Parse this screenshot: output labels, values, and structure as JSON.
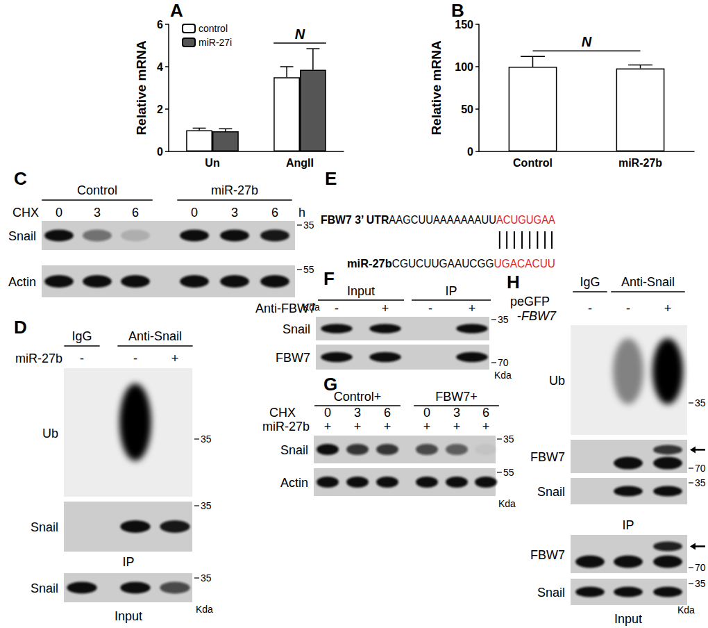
{
  "chart_data": [
    {
      "label": "A",
      "type": "bar",
      "y_label": "Relative mRNA",
      "categories": [
        "Un",
        "AngII"
      ],
      "series": [
        {
          "name": "control",
          "color": "#ffffff",
          "values": [
            1.0,
            3.5
          ],
          "errors": [
            0.1,
            0.5
          ]
        },
        {
          "name": "miR-27i",
          "color": "#555555",
          "values": [
            0.95,
            3.85
          ],
          "errors": [
            0.12,
            1.0
          ]
        }
      ],
      "ylim": [
        0,
        6
      ],
      "yticks": [
        0,
        2,
        4,
        6
      ],
      "grid": false,
      "legend": "upper left",
      "annotations": [
        {
          "text": "N",
          "categories": [
            "AngII"
          ]
        }
      ]
    },
    {
      "label": "B",
      "type": "bar",
      "y_label": "Relative mRNA",
      "categories": [
        "Control",
        "miR-27b"
      ],
      "values": [
        100,
        98
      ],
      "errors": [
        12,
        4
      ],
      "color": "#ffffff",
      "ylim": [
        0,
        150
      ],
      "yticks": [
        0,
        50,
        100,
        150
      ],
      "grid": false,
      "annotations": [
        {
          "text": "N",
          "categories": [
            "Control",
            "miR-27b"
          ]
        }
      ]
    }
  ],
  "panels": {
    "C": {
      "label": "C",
      "groups": [
        "Control",
        "miR-27b"
      ],
      "conditions": [
        {
          "name": "CHX",
          "values": [
            0,
            3,
            6,
            0,
            3,
            6
          ],
          "unit": "h"
        }
      ],
      "rows": [
        {
          "name": "Snail",
          "bands": [
            1,
            0.5,
            0.15,
            1,
            1,
            0.95
          ],
          "marker": 35
        },
        {
          "name": "Actin",
          "bands": [
            1,
            1,
            1,
            1,
            1,
            1
          ],
          "marker": 55
        }
      ],
      "unit": "Kda"
    },
    "D": {
      "label": "D",
      "groups": [
        "IgG",
        "Anti-Snail"
      ],
      "conditions": [
        {
          "name": "miR-27b",
          "values": [
            "-",
            "-",
            "+"
          ]
        }
      ],
      "sections": [
        {
          "caption": "IP",
          "rows": [
            {
              "name": "Ub",
              "smear": [
                0,
                1,
                0
              ],
              "marker": 35
            },
            {
              "name": "Snail",
              "bands": [
                0,
                1,
                0.95
              ],
              "marker": 35
            }
          ]
        },
        {
          "caption": "Input",
          "rows": [
            {
              "name": "Snail",
              "bands": [
                1,
                1,
                0.7
              ],
              "marker": 35
            }
          ]
        }
      ],
      "unit": "Kda"
    },
    "E": {
      "label": "E",
      "utr_label": "FBW7 3’ UTR",
      "utr_sequence": "AAGCUUAAAAAAAUU",
      "utr_seed": "ACUGUGAA",
      "mirna_label": "miR-27b",
      "mirna_sequence": "CGUCUUGAAUCGG",
      "mirna_seed": "UGACACUU"
    },
    "F": {
      "label": "F",
      "groups": [
        "Input",
        "IP"
      ],
      "conditions": [
        {
          "name": "Anti-FBW7",
          "values": [
            "-",
            "+",
            "-",
            "+"
          ]
        }
      ],
      "rows": [
        {
          "name": "Snail",
          "bands": [
            1,
            1,
            0,
            1
          ],
          "marker": 35
        },
        {
          "name": "FBW7",
          "bands": [
            1,
            1,
            0,
            1
          ],
          "marker": 70
        }
      ],
      "unit": "Kda"
    },
    "G": {
      "label": "G",
      "groups": [
        "Control+",
        "FBW7+"
      ],
      "conditions": [
        {
          "name": "CHX",
          "values": [
            0,
            3,
            6,
            0,
            3,
            6
          ]
        },
        {
          "name": "miR-27b",
          "values": [
            "+",
            "+",
            "+",
            "+",
            "+",
            "+"
          ]
        }
      ],
      "rows": [
        {
          "name": "Snail",
          "bands": [
            1,
            0.8,
            0.8,
            0.7,
            0.6,
            0.05
          ],
          "marker": 35
        },
        {
          "name": "Actin",
          "bands": [
            1,
            1,
            1,
            1,
            1,
            1
          ],
          "marker": 55
        }
      ],
      "unit": "Kda"
    },
    "H": {
      "label": "H",
      "groups": [
        "IgG",
        "Anti-Snail"
      ],
      "conditions": [
        {
          "name": [
            "peGFP",
            "-FBW7"
          ],
          "values": [
            "-",
            "-",
            "+"
          ]
        }
      ],
      "sections": [
        {
          "caption": "IP",
          "rows": [
            {
              "name": "Ub",
              "smear": [
                0,
                0.45,
                1
              ],
              "marker": 35
            },
            {
              "name": "FBW7",
              "bands": [
                0,
                1,
                1
              ],
              "upper_bands": [
                0,
                0,
                0.8
              ],
              "marker": 70
            },
            {
              "name": "Snail",
              "bands": [
                0,
                1,
                1
              ],
              "marker": 35
            }
          ]
        },
        {
          "caption": "Input",
          "rows": [
            {
              "name": "FBW7",
              "bands": [
                1,
                1,
                1
              ],
              "upper_bands": [
                0,
                0,
                0.9
              ],
              "marker": 70
            },
            {
              "name": "Snail",
              "bands": [
                1,
                1,
                1
              ],
              "marker": 35
            }
          ]
        }
      ],
      "unit": "Kda"
    }
  }
}
